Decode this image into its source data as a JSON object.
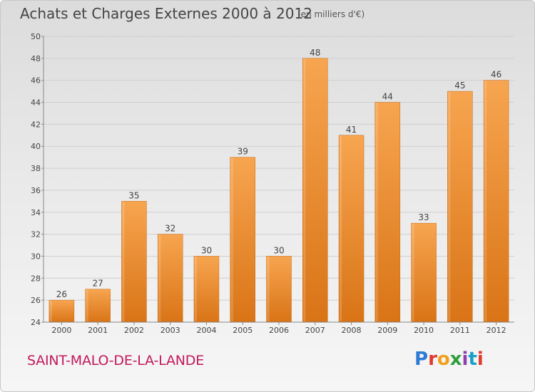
{
  "header": {
    "title": "Achats et Charges Externes 2000 à 2012",
    "subtitle": "(en milliers d'€)"
  },
  "footer": {
    "place": "SAINT-MALO-DE-LA-LANDE",
    "logo": "Proxiti",
    "logo_colors": [
      "#2e7bd6",
      "#e03a2f",
      "#f0a01a",
      "#2e9e3e",
      "#8b3fb0",
      "#1aa0c8",
      "#e03a2f"
    ]
  },
  "colors": {
    "bar_top": "#f7a550",
    "bar_bottom": "#d97416",
    "grid": "#cfcfcf",
    "axis": "#888888",
    "text": "#444444"
  },
  "chart_data": {
    "type": "bar",
    "title": "Achats et Charges Externes 2000 à 2012",
    "subtitle": "(en milliers d'€)",
    "categories": [
      "2000",
      "2001",
      "2002",
      "2003",
      "2004",
      "2005",
      "2006",
      "2007",
      "2008",
      "2009",
      "2010",
      "2011",
      "2012"
    ],
    "values": [
      26,
      27,
      35,
      32,
      30,
      39,
      30,
      48,
      41,
      44,
      33,
      45,
      46
    ],
    "ylim": [
      24,
      50
    ],
    "yticks": [
      24,
      26,
      28,
      30,
      32,
      34,
      36,
      38,
      40,
      42,
      44,
      46,
      48,
      50
    ],
    "grid": true,
    "data_labels": true
  }
}
